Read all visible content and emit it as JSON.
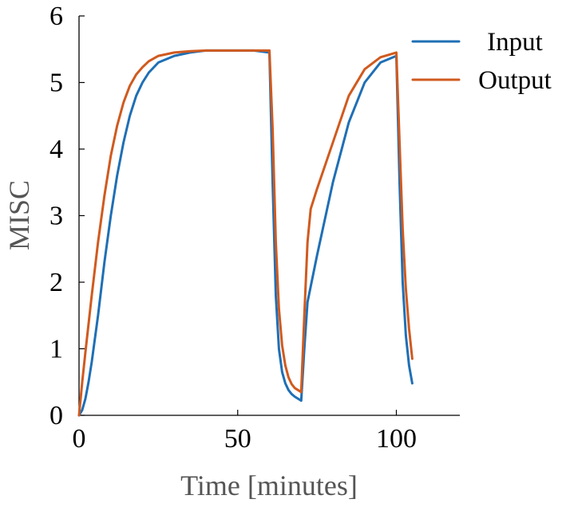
{
  "chart_data": {
    "type": "line",
    "title": "",
    "xlabel": "Time [minutes]",
    "ylabel": "MISC",
    "xlim": [
      0,
      120
    ],
    "ylim": [
      0,
      6
    ],
    "xticks": [
      0,
      50,
      100
    ],
    "yticks": [
      0,
      1,
      2,
      3,
      4,
      5,
      6
    ],
    "grid": false,
    "legend_position": "top-right",
    "series": [
      {
        "name": "Input",
        "color": "#1f6fb5",
        "x": [
          0,
          1,
          2,
          3,
          4,
          6,
          8,
          10,
          12,
          14,
          16,
          18,
          20,
          22,
          25,
          30,
          35,
          40,
          45,
          50,
          55,
          60,
          61,
          62,
          63,
          64,
          65,
          66,
          67,
          68,
          69,
          70,
          71,
          72,
          75,
          80,
          85,
          90,
          95,
          100,
          101,
          102,
          103,
          104,
          105
        ],
        "y": [
          0,
          0.08,
          0.25,
          0.5,
          0.8,
          1.5,
          2.3,
          3.0,
          3.6,
          4.1,
          4.5,
          4.8,
          5.0,
          5.15,
          5.3,
          5.4,
          5.45,
          5.48,
          5.48,
          5.48,
          5.48,
          5.45,
          3.5,
          1.8,
          1.0,
          0.65,
          0.48,
          0.38,
          0.32,
          0.28,
          0.25,
          0.22,
          1.0,
          1.7,
          2.4,
          3.5,
          4.4,
          5.0,
          5.3,
          5.4,
          3.5,
          2.0,
          1.2,
          0.75,
          0.48
        ]
      },
      {
        "name": "Output",
        "color": "#d05a1f",
        "x": [
          0,
          1,
          2,
          4,
          6,
          8,
          10,
          12,
          14,
          16,
          18,
          20,
          22,
          25,
          30,
          35,
          40,
          45,
          50,
          55,
          60,
          61,
          62,
          63,
          64,
          65,
          66,
          67,
          68,
          69,
          70,
          71,
          72,
          73,
          75,
          80,
          85,
          90,
          95,
          100,
          101,
          102,
          103,
          104,
          105
        ],
        "y": [
          0,
          0.5,
          0.95,
          1.8,
          2.6,
          3.3,
          3.9,
          4.35,
          4.7,
          4.95,
          5.12,
          5.23,
          5.32,
          5.4,
          5.45,
          5.47,
          5.48,
          5.48,
          5.48,
          5.48,
          5.48,
          4.3,
          2.6,
          1.6,
          1.05,
          0.75,
          0.57,
          0.47,
          0.41,
          0.38,
          0.35,
          1.5,
          2.6,
          3.1,
          3.4,
          4.1,
          4.8,
          5.2,
          5.38,
          5.45,
          4.1,
          2.8,
          1.9,
          1.3,
          0.85
        ]
      }
    ]
  }
}
